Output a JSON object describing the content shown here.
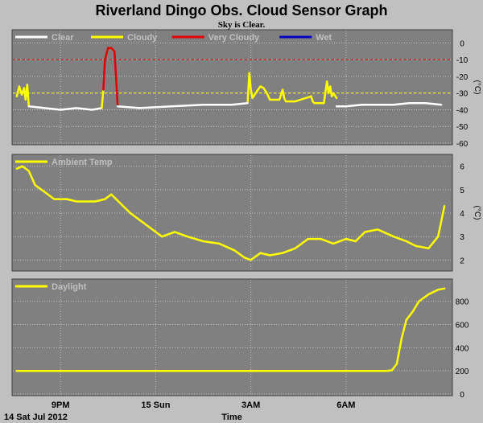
{
  "title": "Riverland Dingo Obs. Cloud Sensor Graph",
  "subtitle": "Sky is Clear.",
  "footer": {
    "date": "14 Sat Jul 2012",
    "xlabel": "Time"
  },
  "colors": {
    "page_bg": "#c0c0c0",
    "panel_bg": "#808080",
    "grid": "#c0c0c0",
    "clear": "#ffffff",
    "cloudy": "#ffff00",
    "very_cloudy": "#e00000",
    "wet": "#0000c0"
  },
  "chart_data": [
    {
      "type": "line",
      "name": "sky-temperature",
      "ylabel": "(°C)",
      "ylim": [
        -60,
        5
      ],
      "yticks": [
        0,
        -10,
        -20,
        -30,
        -40,
        -50,
        -60
      ],
      "xlim": [
        19.6,
        33.2
      ],
      "thresholds": [
        {
          "value": -10,
          "color": "#e00000"
        },
        {
          "value": -30,
          "color": "#ffff00"
        }
      ],
      "legend": [
        {
          "label": "Clear",
          "color": "#ffffff"
        },
        {
          "label": "Cloudy",
          "color": "#ffff00"
        },
        {
          "label": "Very Cloudy",
          "color": "#e00000"
        },
        {
          "label": "Wet",
          "color": "#0000c0"
        }
      ],
      "series": [
        {
          "name": "Cloudy",
          "color": "#ffff00",
          "x": [
            19.62,
            19.7,
            19.78,
            19.85,
            19.9,
            19.95,
            20.0
          ],
          "y": [
            -32,
            -26,
            -31,
            -27,
            -34,
            -25,
            -38
          ]
        },
        {
          "name": "Clear",
          "color": "#ffffff",
          "x": [
            20.0,
            20.5,
            21.0,
            21.5,
            22.0,
            22.3
          ],
          "y": [
            -38,
            -39,
            -40,
            -39,
            -40,
            -39
          ]
        },
        {
          "name": "Cloudy",
          "color": "#ffff00",
          "x": [
            22.3,
            22.35
          ],
          "y": [
            -39,
            -28
          ]
        },
        {
          "name": "Very Cloudy",
          "color": "#e00000",
          "x": [
            22.35,
            22.4,
            22.5,
            22.6,
            22.7,
            22.75,
            22.8
          ],
          "y": [
            -28,
            -10,
            -3,
            -3,
            -5,
            -20,
            -37
          ]
        },
        {
          "name": "Clear",
          "color": "#ffffff",
          "x": [
            22.8,
            23.5,
            24.5,
            25.5,
            26.4,
            26.9
          ],
          "y": [
            -38,
            -39,
            -38,
            -37,
            -37,
            -36
          ]
        },
        {
          "name": "Cloudy",
          "color": "#ffff00",
          "x": [
            26.9,
            26.95,
            27.0,
            27.05,
            27.15,
            27.3,
            27.4,
            27.5,
            27.6,
            27.9,
            28.0,
            28.05,
            28.1,
            28.4,
            28.9,
            28.95,
            29.0,
            29.3,
            29.4,
            29.45,
            29.5,
            29.55,
            29.6,
            29.7
          ],
          "y": [
            -35,
            -18,
            -28,
            -33,
            -30,
            -26,
            -27,
            -30,
            -34,
            -34,
            -28,
            -33,
            -35,
            -35,
            -32,
            -35,
            -36,
            -36,
            -23,
            -30,
            -26,
            -32,
            -30,
            -33
          ]
        },
        {
          "name": "Clear",
          "color": "#ffffff",
          "x": [
            29.7,
            30.0,
            30.5,
            31.0,
            31.5,
            32.0,
            32.5,
            33.0
          ],
          "y": [
            -38,
            -38,
            -37,
            -37,
            -37,
            -36,
            -36,
            -37
          ]
        }
      ]
    },
    {
      "type": "line",
      "name": "ambient-temperature",
      "ylabel": "(°C)",
      "ylim": [
        1.6,
        6.3
      ],
      "yticks": [
        6,
        5,
        4,
        3,
        2
      ],
      "xlim": [
        19.6,
        33.2
      ],
      "legend": [
        {
          "label": "Ambient Temp",
          "color": "#ffff00"
        }
      ],
      "series": [
        {
          "name": "Ambient Temp",
          "color": "#ffff00",
          "x": [
            19.62,
            19.8,
            20.0,
            20.2,
            20.5,
            20.8,
            21.2,
            21.5,
            21.8,
            22.1,
            22.4,
            22.6,
            22.9,
            23.2,
            23.5,
            23.8,
            24.2,
            24.6,
            25.0,
            25.5,
            26.0,
            26.5,
            26.8,
            27.0,
            27.3,
            27.6,
            28.0,
            28.4,
            28.8,
            29.2,
            29.6,
            30.0,
            30.3,
            30.6,
            31.0,
            31.5,
            31.9,
            32.2,
            32.6,
            32.9,
            33.1
          ],
          "y": [
            5.9,
            6.0,
            5.8,
            5.2,
            4.9,
            4.6,
            4.6,
            4.5,
            4.5,
            4.5,
            4.6,
            4.8,
            4.4,
            4.0,
            3.7,
            3.4,
            3.0,
            3.2,
            3.0,
            2.8,
            2.7,
            2.4,
            2.1,
            2.0,
            2.3,
            2.2,
            2.3,
            2.5,
            2.9,
            2.9,
            2.7,
            2.9,
            2.8,
            3.2,
            3.3,
            3.0,
            2.8,
            2.6,
            2.5,
            3.0,
            4.3
          ]
        }
      ]
    },
    {
      "type": "line",
      "name": "daylight",
      "ylabel": "",
      "ylim": [
        0,
        950
      ],
      "yticks": [
        800,
        600,
        400,
        200,
        0
      ],
      "xlim": [
        19.6,
        33.2
      ],
      "legend": [
        {
          "label": "Daylight",
          "color": "#ffff00"
        }
      ],
      "series": [
        {
          "name": "Daylight",
          "color": "#ffff00",
          "x": [
            19.62,
            21.0,
            23.0,
            25.0,
            27.0,
            29.0,
            30.5,
            31.3,
            31.45,
            31.6,
            31.75,
            31.9,
            32.1,
            32.3,
            32.6,
            32.9,
            33.1
          ],
          "y": [
            200,
            200,
            200,
            200,
            200,
            200,
            200,
            200,
            205,
            260,
            480,
            640,
            710,
            800,
            860,
            900,
            910
          ]
        }
      ]
    }
  ],
  "x_ticks": [
    {
      "label": "9PM",
      "x": 21
    },
    {
      "label": "15 Sun",
      "x": 24
    },
    {
      "label": "3AM",
      "x": 27
    },
    {
      "label": "6AM",
      "x": 30
    }
  ]
}
